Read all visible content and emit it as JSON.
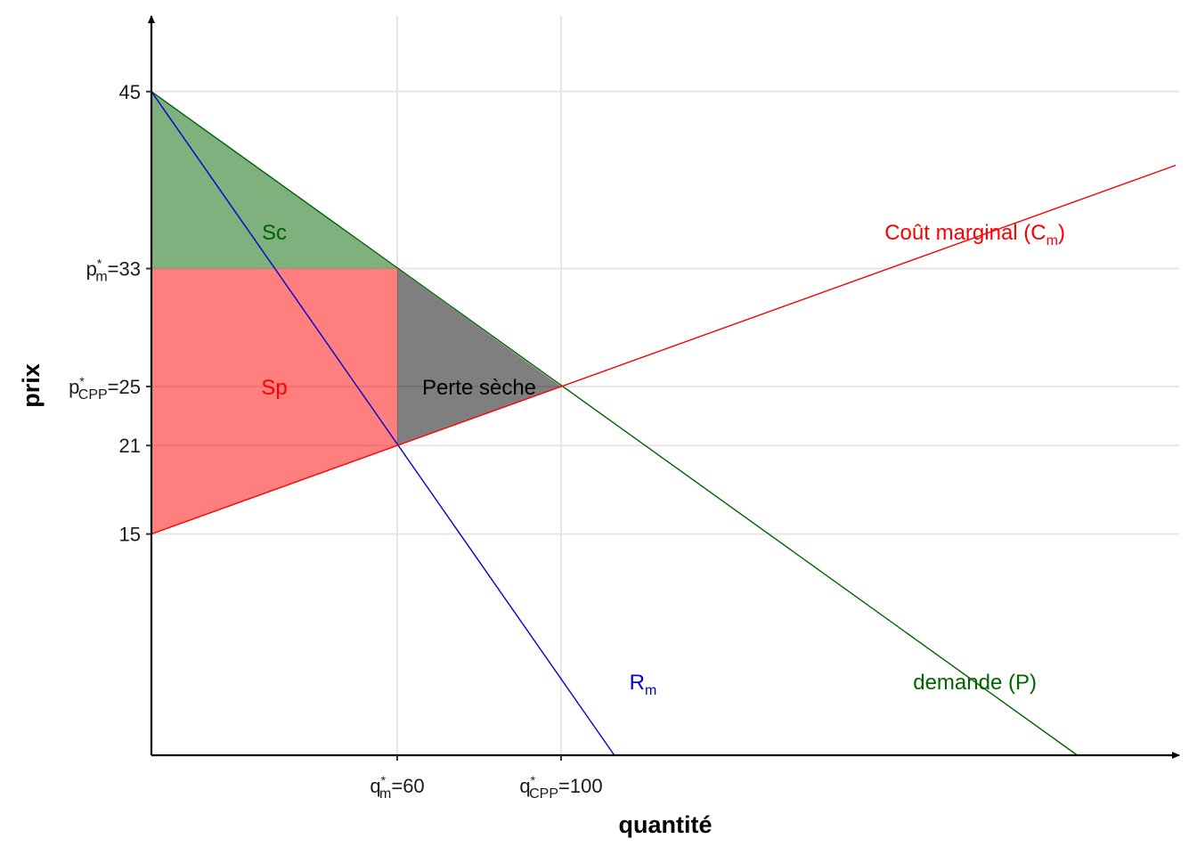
{
  "chart_data": {
    "type": "line",
    "xlabel": "quantité",
    "ylabel": "prix",
    "xlim": [
      0,
      250
    ],
    "ylim": [
      0,
      50
    ],
    "grid": true,
    "x_ticks": [
      {
        "value": 60,
        "base": "q",
        "sup": "*",
        "sub": "m",
        "suffix": "=60"
      },
      {
        "value": 100,
        "base": "q",
        "sup": "*",
        "sub": "CPP",
        "suffix": "=100"
      }
    ],
    "y_ticks": [
      {
        "value": 15,
        "label": "15"
      },
      {
        "value": 21,
        "label": "21"
      },
      {
        "value": 25,
        "base": "p",
        "sup": "*",
        "sub": "CPP",
        "suffix": "=25"
      },
      {
        "value": 33,
        "base": "p",
        "sup": "*",
        "sub": "m",
        "suffix": "=33"
      },
      {
        "value": 45,
        "label": "45"
      }
    ],
    "series": [
      {
        "key": "demand",
        "color": "#006400",
        "x": [
          0,
          226
        ],
        "y": [
          45,
          0
        ]
      },
      {
        "key": "marginal_revenue",
        "color": "#0000cc",
        "x": [
          0,
          113
        ],
        "y": [
          45,
          0
        ]
      },
      {
        "key": "marginal_cost",
        "color": "#ff0000",
        "x": [
          0,
          250
        ],
        "y": [
          15,
          40
        ]
      }
    ],
    "areas": [
      {
        "key": "sc",
        "color": "#006400",
        "opacity": 0.5,
        "points": [
          [
            0,
            45
          ],
          [
            60,
            33
          ],
          [
            0,
            33
          ]
        ]
      },
      {
        "key": "sp",
        "color": "#ff0000",
        "opacity": 0.5,
        "points": [
          [
            0,
            33
          ],
          [
            60,
            33
          ],
          [
            60,
            21
          ],
          [
            0,
            15
          ]
        ]
      },
      {
        "key": "dwl",
        "color": "#000000",
        "opacity": 0.5,
        "points": [
          [
            60,
            33
          ],
          [
            100,
            25
          ],
          [
            60,
            21
          ]
        ]
      }
    ],
    "annotations": [
      {
        "key": "sc",
        "text": "Sc",
        "color": "#006400",
        "x": 30,
        "y": 35.5
      },
      {
        "key": "sp",
        "text": "Sp",
        "color": "#ff0000",
        "x": 30,
        "y": 25
      },
      {
        "key": "dwl",
        "text": "Perte sèche",
        "color": "#000000",
        "x": 80,
        "y": 25
      },
      {
        "key": "mc",
        "base": "Coût marginal (C",
        "sub": "m",
        "suffix": ")",
        "color": "#ff0000",
        "x": 201,
        "y": 35.5
      },
      {
        "key": "mr",
        "base": "R",
        "sub": "m",
        "suffix": "",
        "color": "#0000cc",
        "x": 120,
        "y": 5
      },
      {
        "key": "demand",
        "text": "demande (P)",
        "color": "#006400",
        "x": 201,
        "y": 5
      }
    ]
  }
}
